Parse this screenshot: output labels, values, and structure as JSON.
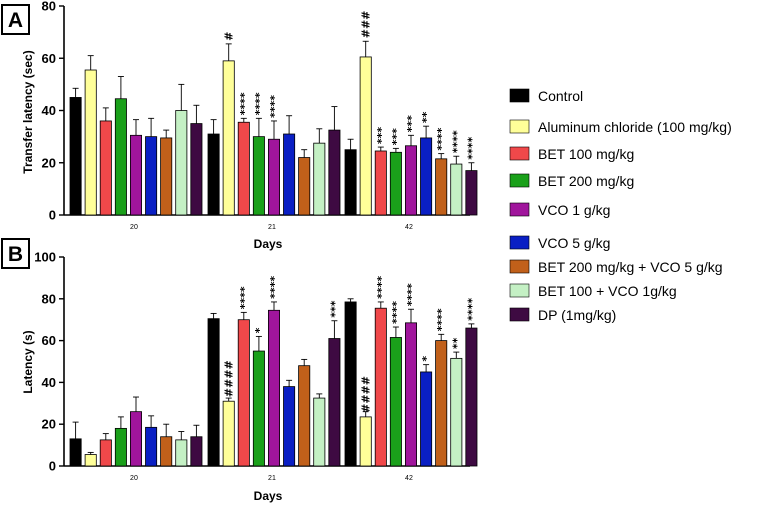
{
  "colors": {
    "Control": "#000000",
    "Aluminum chloride (100 mg/kg)": "#ffff99",
    "BET 100 mg/kg": "#f0484a",
    "BET 200 mg/kg": "#1aa01a",
    "VCO 1 g/kg": "#a0159c",
    "VCO 5 g/kg": "#0a1fc4",
    "BET 200 mg/kg + VCO 5 g/kg": "#c1601a",
    "BET 100 + VCO 1g/kg": "#c4f0c4",
    "DP (1mg/kg)": "#3e0a42"
  },
  "legend": [
    "Control",
    "Aluminum chloride (100 mg/kg)",
    "BET 100 mg/kg",
    "BET 200 mg/kg",
    "VCO 1 g/kg",
    "VCO 5 g/kg",
    "BET 200 mg/kg + VCO 5 g/kg",
    "BET 100 + VCO 1g/kg",
    "DP (1mg/kg)"
  ],
  "chart_data": [
    {
      "panel": "A",
      "type": "bar",
      "ylabel": "Transfer latency (sec)",
      "xlabel": "Days",
      "ylim": [
        0,
        80
      ],
      "yticks": [
        0,
        20,
        40,
        60,
        80
      ],
      "categories": [
        "20",
        "21",
        "42"
      ],
      "series": [
        {
          "name": "Control",
          "values": [
            45,
            31,
            25
          ],
          "errors": [
            3.5,
            5.5,
            4
          ],
          "labels": [
            "",
            "",
            ""
          ]
        },
        {
          "name": "Aluminum chloride (100 mg/kg)",
          "values": [
            55.5,
            59,
            60.5
          ],
          "errors": [
            5.5,
            6.5,
            6
          ],
          "labels": [
            "",
            "#",
            "###"
          ]
        },
        {
          "name": "BET 100 mg/kg",
          "values": [
            36,
            35.5,
            24.5
          ],
          "errors": [
            5,
            1.5,
            1.5
          ],
          "labels": [
            "",
            "****",
            "***"
          ]
        },
        {
          "name": "BET 200 mg/kg",
          "values": [
            44.5,
            30,
            24
          ],
          "errors": [
            8.5,
            7,
            1.5
          ],
          "labels": [
            "",
            "****",
            "***"
          ]
        },
        {
          "name": "VCO 1 g/kg",
          "values": [
            30.5,
            29,
            26.5
          ],
          "errors": [
            6,
            7,
            4
          ],
          "labels": [
            "",
            "****",
            "***"
          ]
        },
        {
          "name": "VCO 5 g/kg",
          "values": [
            30,
            31,
            29.5
          ],
          "errors": [
            7,
            7,
            4.5
          ],
          "labels": [
            "",
            "",
            "**"
          ]
        },
        {
          "name": "BET 200 mg/kg + VCO 5 g/kg",
          "values": [
            29.5,
            22,
            21.5
          ],
          "errors": [
            3,
            3,
            2
          ],
          "labels": [
            "",
            "",
            "****"
          ]
        },
        {
          "name": "BET 100 + VCO 1g/kg",
          "values": [
            40,
            27.5,
            19.5
          ],
          "errors": [
            10,
            5.5,
            3
          ],
          "labels": [
            "",
            "",
            "****"
          ]
        },
        {
          "name": "DP (1mg/kg)",
          "values": [
            35,
            32.5,
            17
          ],
          "errors": [
            7,
            9,
            3
          ],
          "labels": [
            "",
            "",
            "****"
          ]
        }
      ]
    },
    {
      "panel": "B",
      "type": "bar",
      "ylabel": "Latency (s)",
      "xlabel": "Days",
      "ylim": [
        0,
        100
      ],
      "yticks": [
        0,
        20,
        40,
        60,
        80,
        100
      ],
      "categories": [
        "20",
        "21",
        "42"
      ],
      "series": [
        {
          "name": "Control",
          "values": [
            13,
            70.5,
            78.5
          ],
          "errors": [
            8,
            2.5,
            1.5
          ],
          "labels": [
            "",
            "",
            ""
          ]
        },
        {
          "name": "Aluminum chloride (100 mg/kg)",
          "values": [
            5.5,
            31,
            23.5
          ],
          "errors": [
            1,
            1.5,
            2.5
          ],
          "labels": [
            "",
            "####",
            "####"
          ]
        },
        {
          "name": "BET 100 mg/kg",
          "values": [
            12.5,
            70,
            75.5
          ],
          "errors": [
            3,
            3.5,
            3
          ],
          "labels": [
            "",
            "****",
            "****"
          ]
        },
        {
          "name": "BET 200 mg/kg",
          "values": [
            18,
            55,
            61.5
          ],
          "errors": [
            5.5,
            7,
            5
          ],
          "labels": [
            "",
            "*",
            "****"
          ]
        },
        {
          "name": "VCO 1 g/kg",
          "values": [
            26,
            74.5,
            68.5
          ],
          "errors": [
            7,
            4,
            6.5
          ],
          "labels": [
            "",
            "****",
            "****"
          ]
        },
        {
          "name": "VCO 5 g/kg",
          "values": [
            18.5,
            38,
            45
          ],
          "errors": [
            5.5,
            3,
            3.5
          ],
          "labels": [
            "",
            "",
            "*"
          ]
        },
        {
          "name": "BET 200 mg/kg + VCO 5 g/kg",
          "values": [
            14,
            48,
            60
          ],
          "errors": [
            6,
            3,
            3
          ],
          "labels": [
            "",
            "",
            "****"
          ]
        },
        {
          "name": "BET 100 + VCO 1g/kg",
          "values": [
            12.5,
            32.5,
            51.5
          ],
          "errors": [
            4,
            2,
            3
          ],
          "labels": [
            "",
            "",
            "**"
          ]
        },
        {
          "name": "DP (1mg/kg)",
          "values": [
            14,
            61,
            66
          ],
          "errors": [
            5.5,
            8.5,
            2
          ],
          "labels": [
            "",
            "***",
            "****"
          ]
        }
      ]
    }
  ]
}
